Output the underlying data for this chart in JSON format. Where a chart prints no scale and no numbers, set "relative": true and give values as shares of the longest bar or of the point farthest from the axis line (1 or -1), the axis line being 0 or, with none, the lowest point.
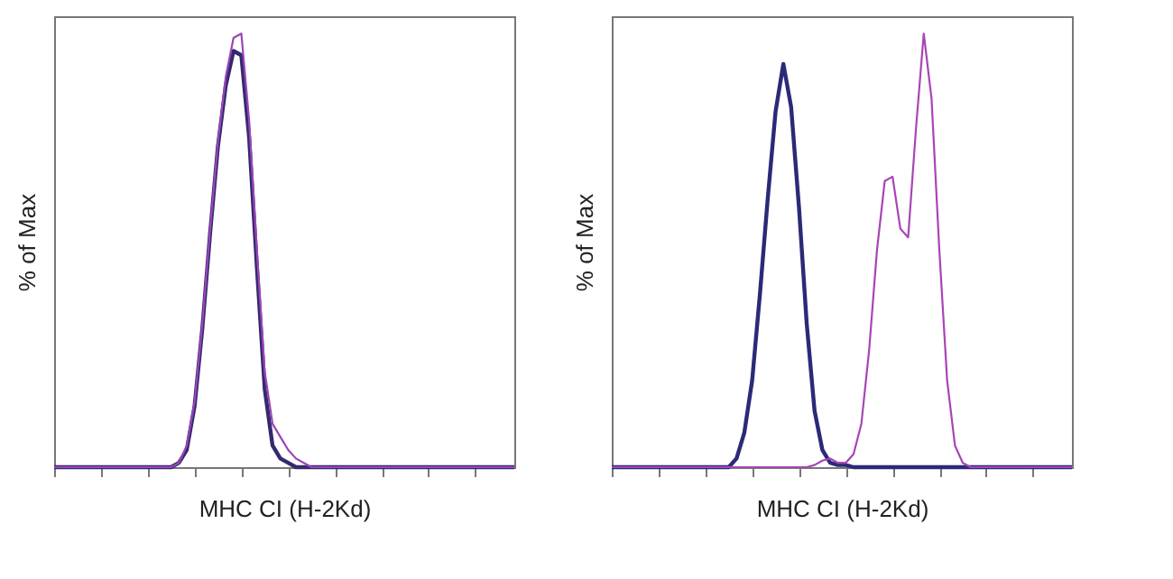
{
  "chart_data": [
    {
      "type": "line",
      "relative": true,
      "xlabel": "MHC CI (H-2Kd)",
      "ylabel": "% of Max",
      "categories": [
        null,
        null,
        null,
        null,
        null,
        null,
        null,
        null,
        null,
        null,
        null,
        null,
        null,
        null,
        null,
        null,
        null,
        null,
        null,
        null,
        null,
        null,
        null,
        null,
        null,
        null,
        null,
        null,
        null,
        null,
        null,
        null,
        null,
        null,
        null,
        null,
        null,
        null,
        null,
        null,
        null,
        null,
        null,
        null,
        null,
        null,
        null,
        null,
        null,
        null,
        null,
        null,
        null,
        null,
        null,
        null,
        null,
        null,
        null,
        null
      ],
      "series": [
        {
          "color": "#35296e",
          "values": [
            0,
            0,
            0,
            0,
            0,
            0,
            0,
            0,
            0,
            0,
            0,
            0,
            0,
            0,
            0,
            0,
            0.01,
            0.04,
            0.14,
            0.32,
            0.54,
            0.74,
            0.88,
            0.96,
            0.95,
            0.76,
            0.46,
            0.18,
            0.05,
            0.02,
            0.01,
            0,
            0,
            0,
            0,
            0,
            0,
            0,
            0,
            0,
            0,
            0,
            0,
            0,
            0,
            0,
            0,
            0,
            0,
            0,
            0,
            0,
            0,
            0,
            0,
            0,
            0,
            0,
            0,
            0
          ]
        },
        {
          "color": "#9b45b8",
          "values": [
            0,
            0,
            0,
            0,
            0,
            0,
            0,
            0,
            0,
            0,
            0,
            0,
            0,
            0,
            0,
            0,
            0.01,
            0.05,
            0.15,
            0.33,
            0.55,
            0.75,
            0.9,
            0.99,
            1,
            0.8,
            0.5,
            0.22,
            0.1,
            0.07,
            0.04,
            0.02,
            0.01,
            0,
            0,
            0,
            0,
            0,
            0,
            0,
            0,
            0,
            0,
            0,
            0,
            0,
            0,
            0,
            0,
            0,
            0,
            0,
            0,
            0,
            0,
            0,
            0,
            0,
            0,
            0
          ]
        }
      ]
    },
    {
      "type": "line",
      "relative": true,
      "xlabel": "MHC CI (H-2Kd)",
      "ylabel": "% of Max",
      "categories": [
        null,
        null,
        null,
        null,
        null,
        null,
        null,
        null,
        null,
        null,
        null,
        null,
        null,
        null,
        null,
        null,
        null,
        null,
        null,
        null,
        null,
        null,
        null,
        null,
        null,
        null,
        null,
        null,
        null,
        null,
        null,
        null,
        null,
        null,
        null,
        null,
        null,
        null,
        null,
        null,
        null,
        null,
        null,
        null,
        null,
        null,
        null,
        null,
        null,
        null,
        null,
        null,
        null,
        null,
        null,
        null,
        null,
        null,
        null,
        null
      ],
      "series": [
        {
          "color": "#2b2a78",
          "values": [
            0,
            0,
            0,
            0,
            0,
            0,
            0,
            0,
            0,
            0,
            0,
            0,
            0,
            0,
            0,
            0,
            0.02,
            0.08,
            0.2,
            0.4,
            0.62,
            0.82,
            0.93,
            0.83,
            0.6,
            0.33,
            0.13,
            0.04,
            0.01,
            0.005,
            0.005,
            0,
            0,
            0,
            0,
            0,
            0,
            0,
            0,
            0,
            0,
            0,
            0,
            0,
            0,
            0,
            0,
            0,
            0,
            0,
            0,
            0,
            0,
            0,
            0,
            0,
            0,
            0,
            0,
            0
          ]
        },
        {
          "color": "#a845b5",
          "values": [
            0,
            0,
            0,
            0,
            0,
            0,
            0,
            0,
            0,
            0,
            0,
            0,
            0,
            0,
            0,
            0,
            0,
            0,
            0,
            0,
            0,
            0,
            0,
            0,
            0,
            0,
            0.005,
            0.015,
            0.02,
            0.01,
            0.01,
            0.03,
            0.1,
            0.27,
            0.5,
            0.66,
            0.67,
            0.55,
            0.53,
            0.78,
            1,
            0.85,
            0.5,
            0.2,
            0.05,
            0.01,
            0,
            0,
            0,
            0,
            0,
            0,
            0,
            0,
            0,
            0,
            0,
            0,
            0,
            0
          ]
        }
      ]
    }
  ]
}
